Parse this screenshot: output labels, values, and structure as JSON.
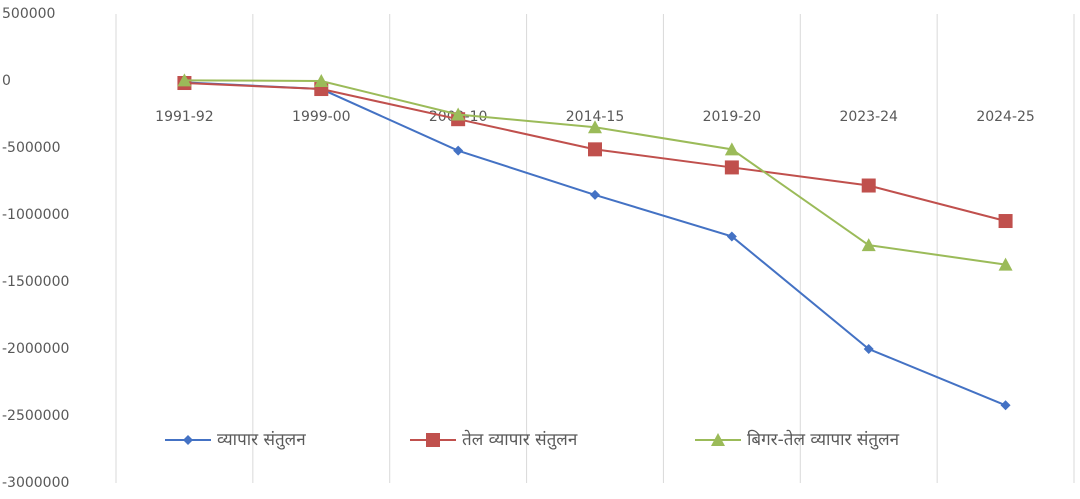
{
  "chart_data": {
    "type": "line",
    "categories": [
      "1991-92",
      "1999-00",
      "2009-10",
      "2014-15",
      "2019-20",
      "2023-24",
      "2024-25"
    ],
    "series": [
      {
        "name": "व्यापार संतुलन",
        "color": "#4472c4",
        "marker": "diamond",
        "values": [
          -10000,
          -60000,
          -520000,
          -850000,
          -1160000,
          -2000000,
          -2420000
        ]
      },
      {
        "name": "तेल व्यापार संतुलन",
        "color": "#c0504d",
        "marker": "square",
        "values": [
          -15000,
          -60000,
          -285000,
          -510000,
          -645000,
          -780000,
          -1045000
        ]
      },
      {
        "name": "बिगर-तेल व्यापार संतुलन",
        "color": "#9bbb59",
        "marker": "triangle",
        "values": [
          5000,
          0,
          -250000,
          -345000,
          -510000,
          -1225000,
          -1370000
        ]
      }
    ],
    "ylim": [
      -3000000,
      500000
    ],
    "yticks": [
      500000,
      0,
      -500000,
      -1000000,
      -1500000,
      -2000000,
      -2500000,
      -3000000
    ],
    "legend": "bottom"
  }
}
